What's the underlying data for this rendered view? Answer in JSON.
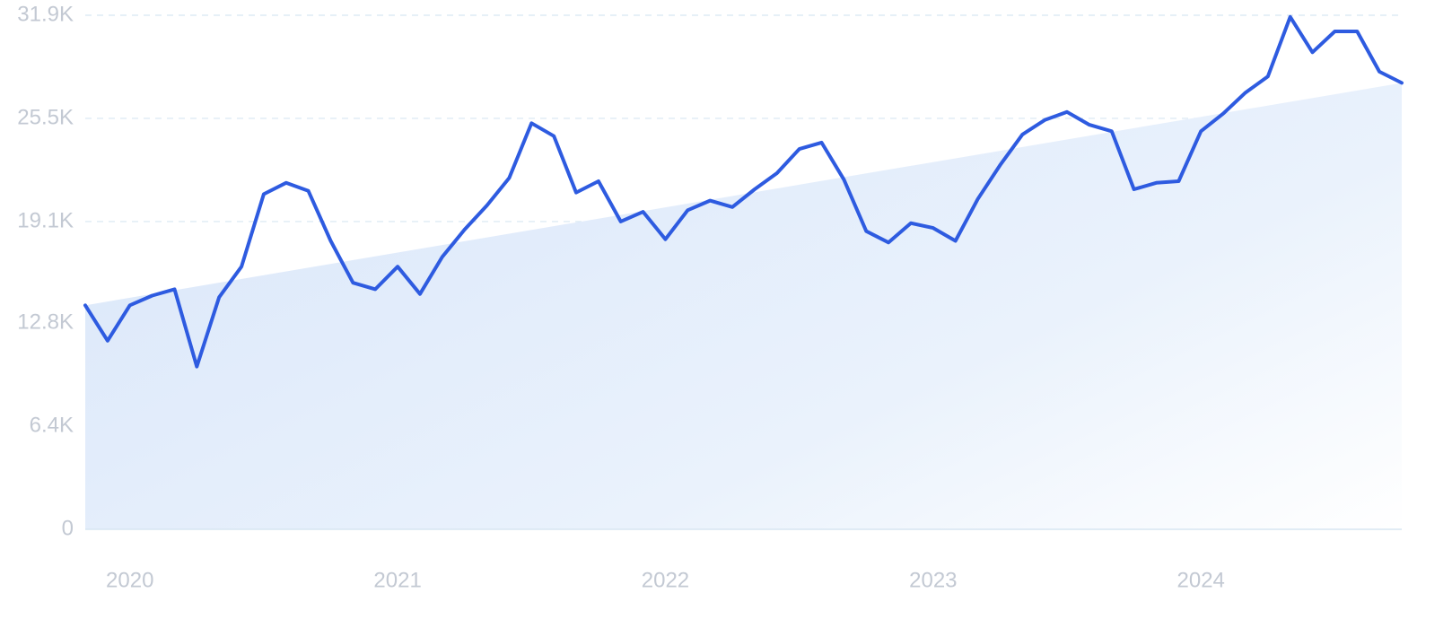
{
  "chart_data": {
    "type": "line",
    "title": "",
    "xlabel": "",
    "ylabel": "",
    "ylim": [
      0,
      31900
    ],
    "y_ticks": [
      {
        "value": 0,
        "label": "0"
      },
      {
        "value": 6400,
        "label": "6.4K"
      },
      {
        "value": 12800,
        "label": "12.8K"
      },
      {
        "value": 19100,
        "label": "19.1K"
      },
      {
        "value": 25500,
        "label": "25.5K"
      },
      {
        "value": 31900,
        "label": "31.9K"
      }
    ],
    "x_ticks": [
      {
        "value": "2020-01",
        "label": "2020"
      },
      {
        "value": "2021-01",
        "label": "2021"
      },
      {
        "value": "2022-01",
        "label": "2022"
      },
      {
        "value": "2023-01",
        "label": "2023"
      },
      {
        "value": "2024-01",
        "label": "2024"
      }
    ],
    "grid": true,
    "legend": "none",
    "colors": {
      "line": "#2e5be0",
      "trend_fill": "#dde9f9",
      "grid": "#d7e6f2",
      "tick_text": "#c3c9d3"
    },
    "trend": {
      "start": {
        "x": "2019-11",
        "y": 13900
      },
      "end": {
        "x": "2024-10",
        "y": 27700
      }
    },
    "series": [
      {
        "x": [
          "2019-11",
          "2019-12",
          "2020-01",
          "2020-02",
          "2020-03",
          "2020-04",
          "2020-05",
          "2020-06",
          "2020-07",
          "2020-08",
          "2020-09",
          "2020-10",
          "2020-11",
          "2020-12",
          "2021-01",
          "2021-02",
          "2021-03",
          "2021-04",
          "2021-05",
          "2021-06",
          "2021-07",
          "2021-08",
          "2021-09",
          "2021-10",
          "2021-11",
          "2021-12",
          "2022-01",
          "2022-02",
          "2022-03",
          "2022-04",
          "2022-05",
          "2022-06",
          "2022-07",
          "2022-08",
          "2022-09",
          "2022-10",
          "2022-11",
          "2022-12",
          "2023-01",
          "2023-02",
          "2023-03",
          "2023-04",
          "2023-05",
          "2023-06",
          "2023-07",
          "2023-08",
          "2023-09",
          "2023-10",
          "2023-11",
          "2023-12",
          "2024-01",
          "2024-02",
          "2024-03",
          "2024-04",
          "2024-05",
          "2024-06",
          "2024-07",
          "2024-08",
          "2024-09",
          "2024-10"
        ],
        "values": [
          13900,
          11700,
          13900,
          14500,
          14900,
          10100,
          14400,
          16300,
          20800,
          21500,
          21000,
          17900,
          15300,
          14900,
          16300,
          14600,
          16900,
          18600,
          20100,
          21800,
          25200,
          24400,
          20900,
          21600,
          19100,
          19700,
          18000,
          19800,
          20400,
          20000,
          21100,
          22100,
          23600,
          24000,
          21700,
          18500,
          17800,
          19000,
          18700,
          17900,
          20500,
          22600,
          24500,
          25400,
          25900,
          25100,
          24700,
          21100,
          21500,
          21600,
          24700,
          25800,
          27100,
          28100,
          31800,
          29600,
          30900,
          30900,
          28400,
          27700
        ]
      }
    ]
  }
}
